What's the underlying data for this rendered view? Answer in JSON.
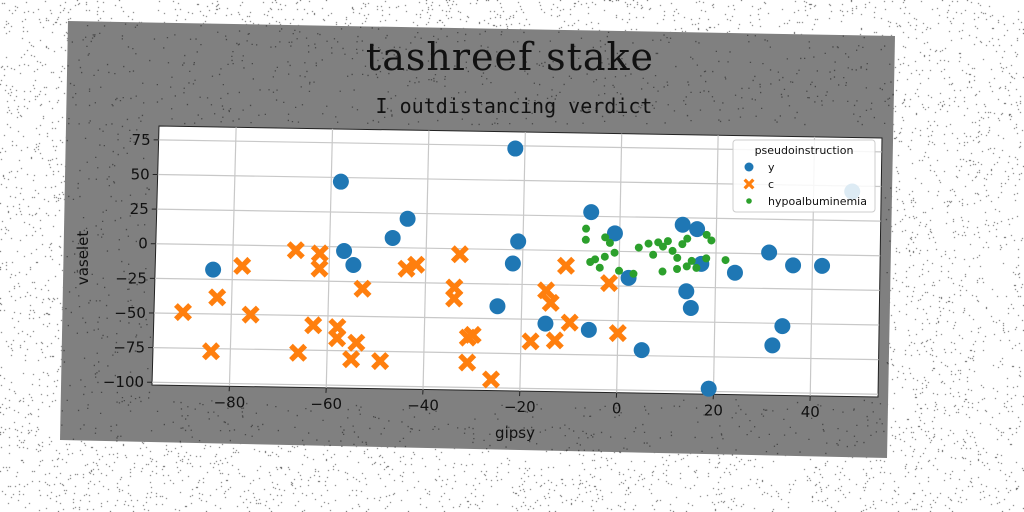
{
  "chart_data": {
    "type": "scatter",
    "title": "tashreef stake",
    "subtitle": "I outdistancing verdict",
    "xlabel": "gipsy",
    "ylabel": "vaselet",
    "xlim": [
      -96,
      54
    ],
    "ylim": [
      -102,
      85
    ],
    "xticks": [
      -80,
      -60,
      -40,
      -20,
      0,
      20,
      40
    ],
    "yticks": [
      75,
      50,
      25,
      0,
      -25,
      -50,
      -75,
      -100
    ],
    "grid": true,
    "legend": {
      "title": "pseudoinstruction",
      "placement": "top-right"
    },
    "series": [
      {
        "name": "y",
        "marker": "circle",
        "color": "#1f77b4",
        "points": [
          [
            -84,
            -18
          ],
          [
            -58,
            47
          ],
          [
            -57,
            -3
          ],
          [
            -55,
            -13
          ],
          [
            -47,
            7
          ],
          [
            -44,
            21
          ],
          [
            -22,
            73
          ],
          [
            -21,
            6
          ],
          [
            -22,
            -10
          ],
          [
            -25,
            -41
          ],
          [
            -15,
            -53
          ],
          [
            -6,
            28
          ],
          [
            -6,
            -57
          ],
          [
            -1,
            13
          ],
          [
            2,
            -19
          ],
          [
            5,
            -71
          ],
          [
            13,
            20
          ],
          [
            16,
            17
          ],
          [
            14,
            -28
          ],
          [
            15,
            -40
          ],
          [
            17,
            -8
          ],
          [
            19,
            -98
          ],
          [
            24,
            -14
          ],
          [
            31,
            1
          ],
          [
            32,
            -66
          ],
          [
            34,
            -52
          ],
          [
            36,
            -8
          ],
          [
            42,
            -8
          ],
          [
            48,
            46
          ]
        ]
      },
      {
        "name": "c",
        "marker": "x",
        "color": "#ff7f0e",
        "points": [
          [
            -90,
            -49
          ],
          [
            -84,
            -77
          ],
          [
            -83,
            -38
          ],
          [
            -78,
            -15
          ],
          [
            -76,
            -50
          ],
          [
            -67,
            -3
          ],
          [
            -66,
            -77
          ],
          [
            -63,
            -57
          ],
          [
            -62,
            -5
          ],
          [
            -62,
            -16
          ],
          [
            -58,
            -58
          ],
          [
            -58,
            -66
          ],
          [
            -55,
            -81
          ],
          [
            -54,
            -69
          ],
          [
            -53,
            -30
          ],
          [
            -49,
            -82
          ],
          [
            -44,
            -15
          ],
          [
            -42,
            -12
          ],
          [
            -34,
            -28
          ],
          [
            -34,
            -36
          ],
          [
            -33,
            -4
          ],
          [
            -31,
            -64
          ],
          [
            -30,
            -62
          ],
          [
            -31,
            -82
          ],
          [
            -26,
            -94
          ],
          [
            -18,
            -66
          ],
          [
            -15,
            -29
          ],
          [
            -14,
            -38
          ],
          [
            -13,
            -65
          ],
          [
            -11,
            -11
          ],
          [
            -10,
            -52
          ],
          [
            -2,
            -23
          ],
          [
            0,
            -59
          ]
        ]
      },
      {
        "name": "hypoalbuminemia",
        "marker": "dot",
        "color": "#2ca02c",
        "points": [
          [
            -7,
            16
          ],
          [
            -7,
            8
          ],
          [
            -6,
            -8
          ],
          [
            -4,
            -12
          ],
          [
            -3,
            10
          ],
          [
            -2,
            6
          ],
          [
            -1,
            -1
          ],
          [
            -3,
            -4
          ],
          [
            0,
            -14
          ],
          [
            3,
            -16
          ],
          [
            6,
            6
          ],
          [
            7,
            -2
          ],
          [
            9,
            4
          ],
          [
            9,
            -14
          ],
          [
            10,
            8
          ],
          [
            11,
            1
          ],
          [
            12,
            -4
          ],
          [
            12,
            -12
          ],
          [
            13,
            6
          ],
          [
            14,
            -10
          ],
          [
            15,
            -6
          ],
          [
            16,
            -11
          ],
          [
            18,
            -4
          ],
          [
            18,
            13
          ],
          [
            19,
            9
          ],
          [
            22,
            -5
          ],
          [
            14,
            10
          ],
          [
            8,
            7
          ],
          [
            4,
            3
          ],
          [
            -5,
            -6
          ]
        ]
      }
    ]
  }
}
